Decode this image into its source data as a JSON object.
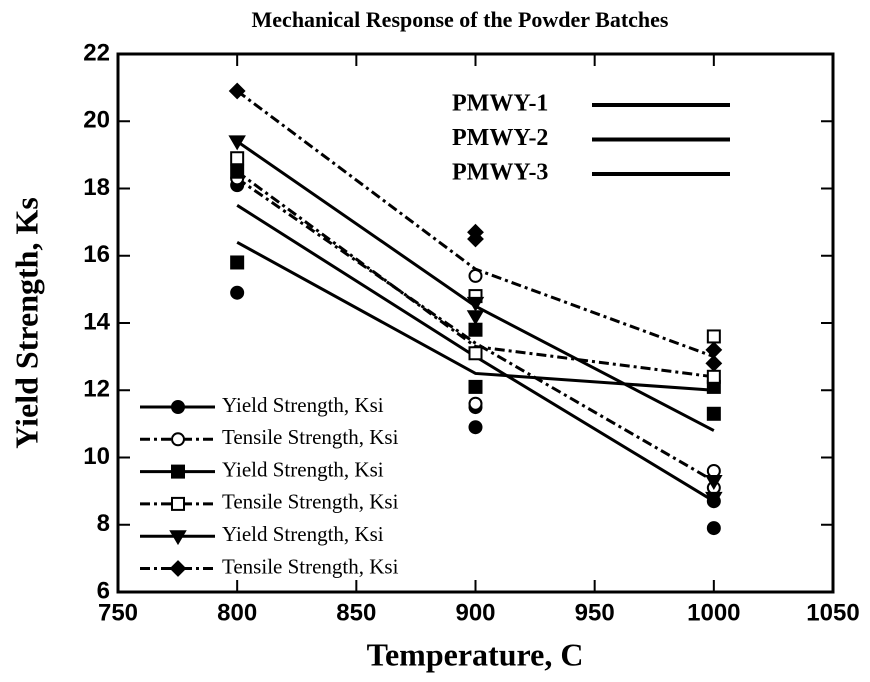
{
  "chart_data": {
    "type": "scatter",
    "title": "Mechanical Response of the Powder Batches",
    "xlabel": "Temperature, C",
    "ylabel": "Yield Strength,  Ks",
    "xlim": [
      750,
      1050
    ],
    "xticks": [
      750,
      800,
      850,
      900,
      950,
      1000,
      1050
    ],
    "ylim": [
      6,
      22
    ],
    "yticks": [
      6,
      8,
      10,
      12,
      14,
      16,
      18,
      20,
      22
    ],
    "groups": [
      "PMWY-1",
      "PMWY-2",
      "PMWY-3"
    ],
    "fit_x": [
      800,
      900,
      1000
    ],
    "series": [
      {
        "name": "Yield Strength,  Ksi",
        "color": "#000000",
        "marker": "circle",
        "filled": true,
        "dashed": false,
        "x": [
          800,
          800,
          900,
          900,
          1000,
          1000
        ],
        "values": [
          14.9,
          18.1,
          10.9,
          11.5,
          7.9,
          8.7
        ],
        "fit": [
          16.4,
          12.5,
          12.0
        ]
      },
      {
        "name": "Tensile Strength,  Ksi",
        "color": "#000000",
        "marker": "circle",
        "filled": false,
        "dashed": true,
        "x": [
          800,
          900,
          900,
          1000,
          1000
        ],
        "values": [
          18.3,
          15.4,
          11.6,
          9.6,
          9.1
        ],
        "fit": [
          18.3,
          13.4,
          9.3
        ]
      },
      {
        "name": "Yield Strength,  Ksi",
        "color": "#000000",
        "marker": "square",
        "filled": true,
        "dashed": false,
        "x": [
          800,
          800,
          900,
          900,
          1000,
          1000
        ],
        "values": [
          15.8,
          18.5,
          12.1,
          13.8,
          11.3,
          12.1
        ],
        "fit": [
          17.5,
          13.0,
          8.7
        ]
      },
      {
        "name": "Tensile Strength,  Ksi",
        "color": "#000000",
        "marker": "square",
        "filled": false,
        "dashed": true,
        "x": [
          800,
          900,
          900,
          1000,
          1000
        ],
        "values": [
          18.9,
          14.8,
          13.1,
          13.6,
          12.4
        ],
        "fit": [
          18.5,
          13.3,
          12.4
        ]
      },
      {
        "name": "Yield Strength,  Ksi",
        "color": "#000000",
        "marker": "triangle",
        "filled": true,
        "dashed": false,
        "x": [
          800,
          900,
          900,
          1000,
          1000
        ],
        "values": [
          19.4,
          14.2,
          14.6,
          9.3,
          8.8
        ],
        "fit": [
          19.4,
          14.5,
          10.8
        ]
      },
      {
        "name": "Tensile Strength,  Ksi",
        "color": "#000000",
        "marker": "diamond",
        "filled": true,
        "dashed": true,
        "x": [
          800,
          900,
          900,
          1000,
          1000
        ],
        "values": [
          20.9,
          16.7,
          16.5,
          13.2,
          12.8
        ],
        "fit": [
          20.9,
          15.6,
          13.0
        ]
      }
    ]
  }
}
